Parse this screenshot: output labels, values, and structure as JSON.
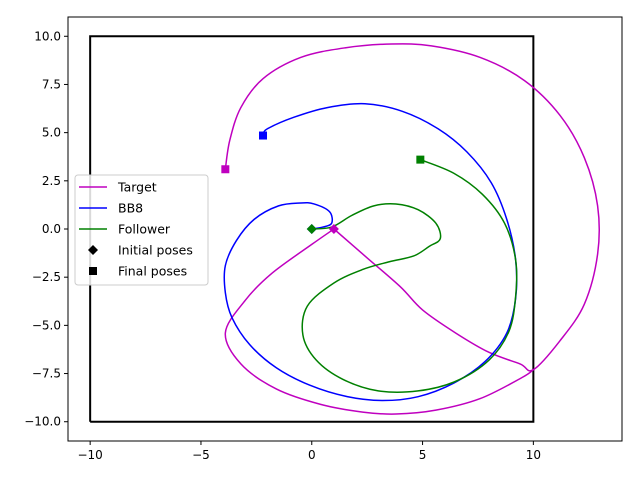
{
  "chart_data": {
    "type": "line",
    "title": "",
    "xlabel": "",
    "ylabel": "",
    "xlim": [
      -11,
      14
    ],
    "ylim": [
      -11,
      11
    ],
    "x_ticks": [
      -10,
      -5,
      0,
      5,
      10
    ],
    "y_ticks": [
      -10.0,
      -7.5,
      -5.0,
      -2.5,
      0.0,
      2.5,
      5.0,
      7.5,
      10.0
    ],
    "x_tick_labels": [
      "−10",
      "−5",
      "0",
      "5",
      "10"
    ],
    "y_tick_labels": [
      "−10.0",
      "−7.5",
      "−5.0",
      "−2.5",
      "0.0",
      "2.5",
      "5.0",
      "7.5",
      "10.0"
    ],
    "grid": false,
    "legend_position": "center-left",
    "boundary": {
      "x": [
        -10,
        10,
        10,
        -10,
        -10
      ],
      "y": [
        -10,
        -10,
        10,
        10,
        -10
      ],
      "color": "#000000"
    },
    "series": [
      {
        "name": "Target",
        "color": "#bf00bf",
        "points": [
          [
            1.0,
            0.0
          ],
          [
            2.5,
            -1.5
          ],
          [
            4.0,
            -3.0
          ],
          [
            5.0,
            -4.2
          ],
          [
            6.5,
            -5.4
          ],
          [
            8.0,
            -6.4
          ],
          [
            9.4,
            -7.0
          ],
          [
            10.0,
            -7.3
          ],
          [
            11.2,
            -5.8
          ],
          [
            12.3,
            -3.9
          ],
          [
            12.9,
            -1.3
          ],
          [
            12.9,
            1.2
          ],
          [
            12.3,
            3.7
          ],
          [
            11.2,
            5.9
          ],
          [
            9.6,
            7.7
          ],
          [
            7.6,
            8.9
          ],
          [
            5.4,
            9.5
          ],
          [
            3.6,
            9.6
          ],
          [
            1.5,
            9.4
          ],
          [
            -0.5,
            8.9
          ],
          [
            -2.2,
            7.8
          ],
          [
            -3.2,
            6.3
          ],
          [
            -3.7,
            4.6
          ],
          [
            -3.9,
            3.1
          ]
        ],
        "segment_lower": [
          [
            1.0,
            0.0
          ],
          [
            0.0,
            -0.8
          ],
          [
            -1.8,
            -2.3
          ],
          [
            -3.0,
            -3.7
          ],
          [
            -3.9,
            -5.4
          ],
          [
            -3.2,
            -7.0
          ],
          [
            -1.6,
            -8.3
          ],
          [
            0.4,
            -9.1
          ],
          [
            2.3,
            -9.5
          ],
          [
            3.8,
            -9.6
          ],
          [
            5.6,
            -9.4
          ],
          [
            7.6,
            -8.8
          ],
          [
            9.5,
            -7.7
          ],
          [
            10.0,
            -7.3
          ]
        ]
      },
      {
        "name": "BB8",
        "color": "#0000ff",
        "points": [
          [
            0.0,
            0.0
          ],
          [
            0.5,
            0.1
          ],
          [
            0.9,
            0.3
          ],
          [
            0.8,
            0.9
          ],
          [
            0.1,
            1.3
          ],
          [
            -0.5,
            1.35
          ],
          [
            -1.5,
            1.2
          ],
          [
            -2.6,
            0.5
          ],
          [
            -3.4,
            -0.6
          ],
          [
            -3.9,
            -1.9
          ],
          [
            -3.9,
            -3.3
          ],
          [
            -3.6,
            -4.6
          ],
          [
            -2.8,
            -6.0
          ],
          [
            -1.6,
            -7.2
          ],
          [
            -0.1,
            -8.1
          ],
          [
            1.6,
            -8.7
          ],
          [
            3.2,
            -8.9
          ],
          [
            4.8,
            -8.7
          ],
          [
            6.4,
            -8.0
          ],
          [
            7.8,
            -6.9
          ],
          [
            8.8,
            -5.4
          ],
          [
            9.2,
            -3.6
          ],
          [
            9.2,
            -1.6
          ],
          [
            8.8,
            0.5
          ],
          [
            8.1,
            2.4
          ],
          [
            7.0,
            4.0
          ],
          [
            5.7,
            5.2
          ],
          [
            4.1,
            6.1
          ],
          [
            2.4,
            6.5
          ],
          [
            0.7,
            6.3
          ],
          [
            -0.8,
            5.8
          ],
          [
            -2.0,
            5.2
          ],
          [
            -2.2,
            4.9
          ]
        ]
      },
      {
        "name": "Follower",
        "color": "#008000",
        "points": [
          [
            0.0,
            0.0
          ],
          [
            0.9,
            0.1
          ],
          [
            1.8,
            0.7
          ],
          [
            2.8,
            1.2
          ],
          [
            3.8,
            1.3
          ],
          [
            4.8,
            1.0
          ],
          [
            5.6,
            0.3
          ],
          [
            5.8,
            -0.5
          ],
          [
            5.3,
            -0.9
          ],
          [
            4.6,
            -1.4
          ],
          [
            3.5,
            -1.7
          ],
          [
            2.3,
            -2.1
          ],
          [
            1.0,
            -2.8
          ],
          [
            -0.2,
            -4.0
          ],
          [
            -0.4,
            -5.5
          ],
          [
            0.2,
            -6.8
          ],
          [
            1.4,
            -7.8
          ],
          [
            3.0,
            -8.4
          ],
          [
            4.8,
            -8.4
          ],
          [
            6.5,
            -7.9
          ],
          [
            8.0,
            -6.8
          ],
          [
            8.9,
            -5.3
          ],
          [
            9.2,
            -3.5
          ],
          [
            9.2,
            -1.6
          ],
          [
            8.7,
            0.3
          ],
          [
            7.7,
            1.8
          ],
          [
            6.4,
            2.9
          ],
          [
            4.9,
            3.6
          ]
        ]
      }
    ],
    "markers": [
      {
        "series": "Target",
        "kind": "Initial poses",
        "shape": "diamond",
        "x": 1.0,
        "y": 0.0,
        "color": "#bf00bf"
      },
      {
        "series": "BB8",
        "kind": "Initial poses",
        "shape": "diamond",
        "x": 0.0,
        "y": 0.0,
        "color": "#0000ff"
      },
      {
        "series": "Follower",
        "kind": "Initial poses",
        "shape": "diamond",
        "x": 0.0,
        "y": 0.0,
        "color": "#008000"
      },
      {
        "series": "Target",
        "kind": "Final poses",
        "shape": "square",
        "x": -3.9,
        "y": 3.1,
        "color": "#bf00bf"
      },
      {
        "series": "BB8",
        "kind": "Final poses",
        "shape": "square",
        "x": -2.2,
        "y": 4.85,
        "color": "#0000ff"
      },
      {
        "series": "Follower",
        "kind": "Final poses",
        "shape": "square",
        "x": 4.9,
        "y": 3.6,
        "color": "#008000"
      }
    ],
    "legend": [
      {
        "label": "Target",
        "kind": "line",
        "color": "#bf00bf"
      },
      {
        "label": "BB8",
        "kind": "line",
        "color": "#0000ff"
      },
      {
        "label": "Follower",
        "kind": "line",
        "color": "#008000"
      },
      {
        "label": "Initial poses",
        "kind": "diamond",
        "color": "#000000"
      },
      {
        "label": "Final poses",
        "kind": "square",
        "color": "#000000"
      }
    ]
  }
}
